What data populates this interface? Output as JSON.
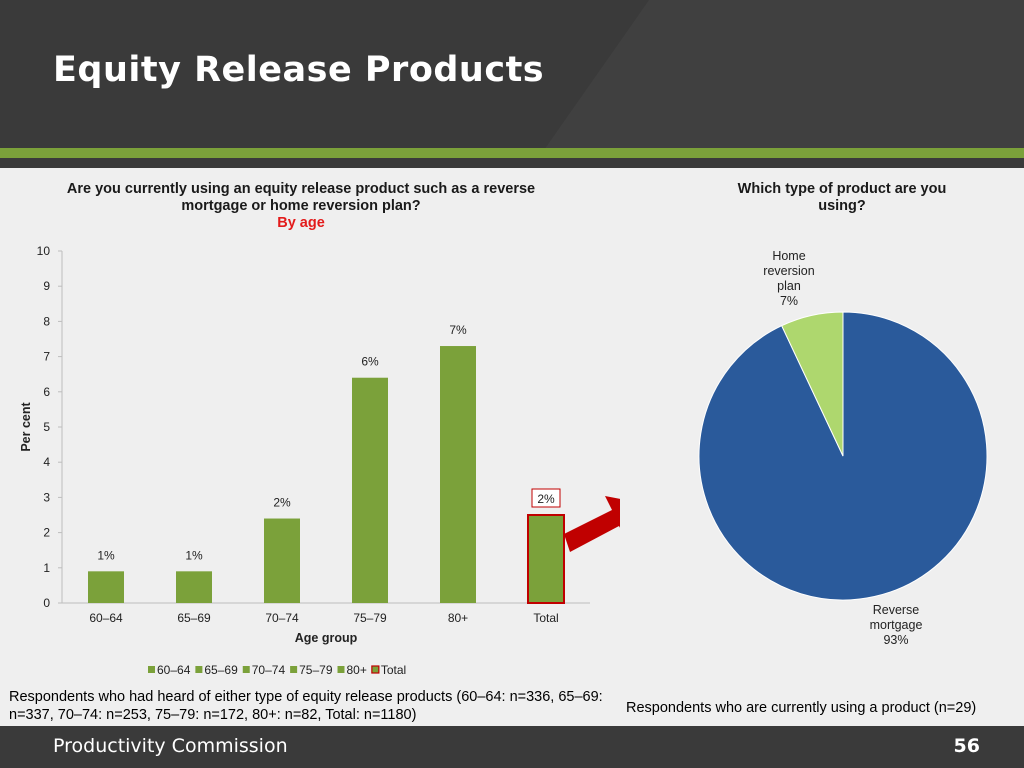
{
  "slide": {
    "title": "Equity Release Products",
    "footer_org": "Productivity Commission",
    "page_number": "56"
  },
  "colors": {
    "bar": "#7ba13a",
    "bar_total_outline": "#c00000",
    "pie_reverse": "#2a5a9b",
    "pie_home": "#aed76e",
    "arrow": "#c00000"
  },
  "chart_data": [
    {
      "type": "bar",
      "title": "Are you currently using an equity release product such as a reverse mortgage or home reversion plan?",
      "subtitle": "By age",
      "xlabel": "Age group",
      "ylabel": "Per cent",
      "ylim": [
        0,
        10
      ],
      "yticks": [
        0,
        1,
        2,
        3,
        4,
        5,
        6,
        7,
        8,
        9,
        10
      ],
      "categories": [
        "60–64",
        "65–69",
        "70–74",
        "75–79",
        "80+",
        "Total"
      ],
      "values": [
        0.9,
        0.9,
        2.4,
        6.4,
        7.3,
        2.5
      ],
      "data_labels": [
        "1%",
        "1%",
        "2%",
        "6%",
        "7%",
        "2%"
      ],
      "legend": [
        "60–64",
        "65–69",
        "70–74",
        "75–79",
        "80+",
        "Total"
      ],
      "legend_position": "bottom",
      "note": "Respondents who had heard of either type of equity release products (60–64: n=336, 65–69: n=337, 70–74: n=253, 75–79: n=172, 80+: n=82, Total: n=1180)"
    },
    {
      "type": "pie",
      "title": "Which type of product are you using?",
      "slices": [
        {
          "label": "Reverse mortgage",
          "value": 93,
          "display": "93%"
        },
        {
          "label": "Home reversion plan",
          "value": 7,
          "display": "7%"
        }
      ],
      "note": "Respondents who are currently using a product (n=29)"
    }
  ]
}
